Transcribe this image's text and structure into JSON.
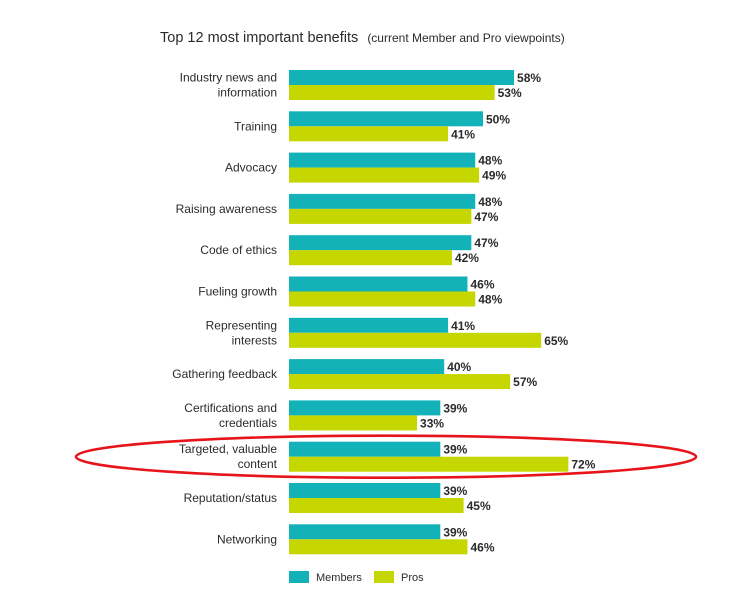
{
  "chart_data": {
    "type": "bar",
    "orientation": "horizontal",
    "title": "Top 12 most important benefits",
    "subtitle": "(current Member and Pro viewpoints)",
    "categories": [
      "Industry news and information",
      "Training",
      "Advocacy",
      "Raising awareness",
      "Code of ethics",
      "Fueling growth",
      "Representing interests",
      "Gathering feedback",
      "Certifications and credentials",
      "Targeted, valuable content",
      "Reputation/status",
      "Networking"
    ],
    "series": [
      {
        "name": "Members",
        "color": "#13b2b8",
        "values": [
          58,
          50,
          48,
          48,
          47,
          46,
          41,
          40,
          39,
          39,
          39,
          39
        ]
      },
      {
        "name": "Pros",
        "color": "#c5d601",
        "values": [
          53,
          41,
          49,
          47,
          42,
          48,
          65,
          57,
          33,
          72,
          45,
          46
        ]
      }
    ],
    "value_suffix": "%",
    "xlim": [
      0,
      100
    ],
    "grid": false,
    "legend": "bottom",
    "highlight": {
      "category": "Targeted, valuable content",
      "style": "red-ellipse",
      "color": "#e8141b"
    }
  }
}
